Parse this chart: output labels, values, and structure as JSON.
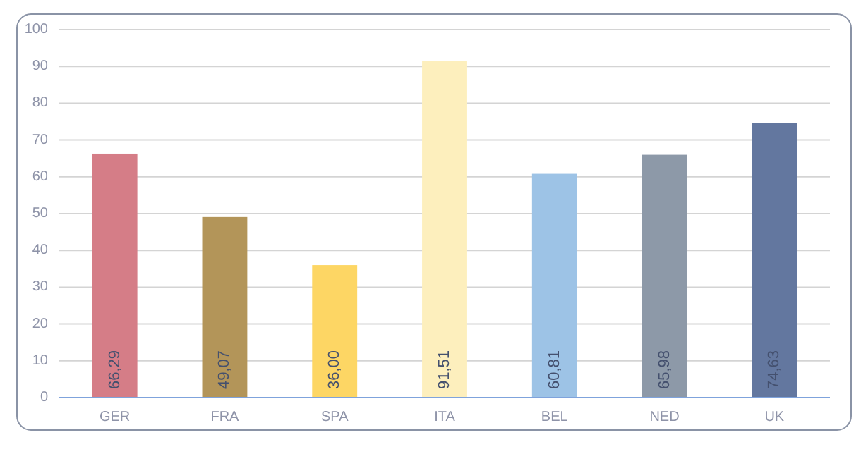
{
  "chart_data": {
    "type": "bar",
    "categories": [
      "GER",
      "FRA",
      "SPA",
      "ITA",
      "BEL",
      "NED",
      "UK"
    ],
    "values": [
      66.29,
      49.07,
      36.0,
      91.51,
      60.81,
      65.98,
      74.63
    ],
    "colors": [
      "#d57d87",
      "#b39559",
      "#fdd664",
      "#fdefbd",
      "#9dc3e6",
      "#8d99a8",
      "#63779f"
    ],
    "value_labels": [
      "66,29",
      "49,07",
      "36,00",
      "91,51",
      "60,81",
      "65,98",
      "74,63"
    ],
    "ylim": [
      0,
      100
    ],
    "yticks": [
      0,
      10,
      20,
      30,
      40,
      50,
      60,
      70,
      80,
      90,
      100
    ],
    "grid": "y"
  }
}
